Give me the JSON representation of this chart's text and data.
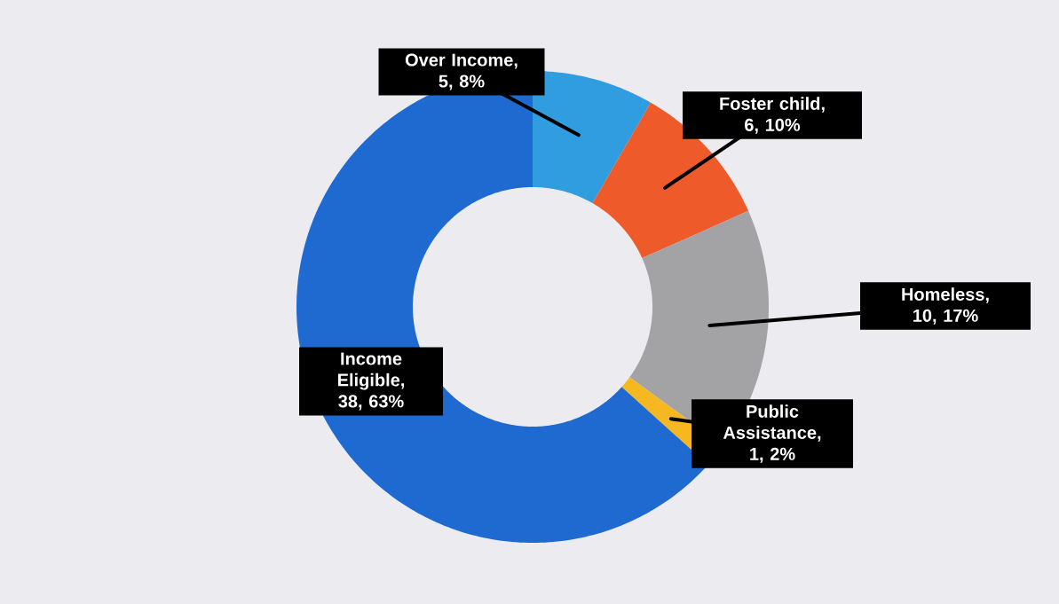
{
  "chart_data": {
    "type": "donut",
    "categories": [
      "Over Income",
      "Foster child",
      "Homeless",
      "Public Assistance",
      "Income Eligible"
    ],
    "values": [
      5,
      6,
      10,
      1,
      38
    ],
    "value_labels": [
      ", 5, 8%",
      ", 6, 10%",
      ", 10, 17%",
      ", 1, 2%",
      ", 38, 63%"
    ],
    "colors": [
      "#2f9de0",
      "#ee5a2a",
      "#a3a3a6",
      "#f5b820",
      "#1f6ad0"
    ]
  }
}
